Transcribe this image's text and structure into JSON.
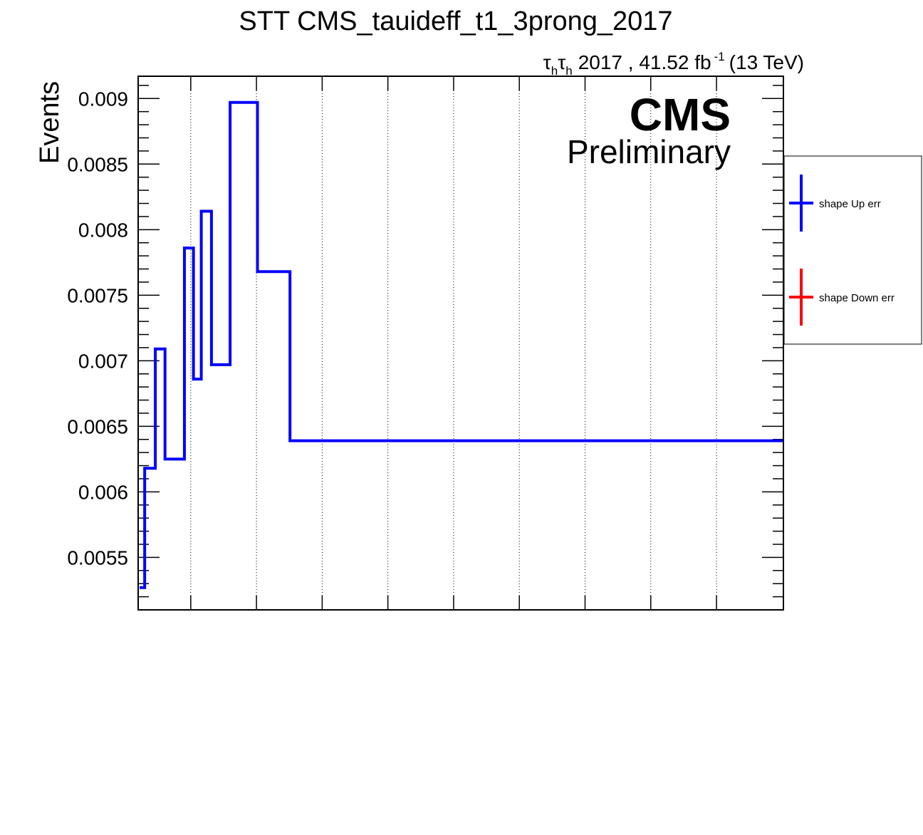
{
  "chart_data": {
    "type": "line",
    "title": "STT CMS_tauideff_t1_3prong_2017",
    "lumi_prefix": "2017 , 41.52 fb",
    "lumi_superscript": "-1",
    "lumi_suffix": "(13 TeV)",
    "tau_symbol": "τ",
    "tau_subscript": "h",
    "cms_label": "CMS",
    "preliminary_label": "Preliminary",
    "ylabel": "Events",
    "xlabel": "",
    "ylim": [
      0.0051,
      0.00917
    ],
    "xlim": [
      0,
      1
    ],
    "grid_x": true,
    "grid_y": false,
    "yticks": [
      {
        "value": 0.0055,
        "label": "0.0055"
      },
      {
        "value": 0.006,
        "label": "0.006"
      },
      {
        "value": 0.0065,
        "label": "0.0065"
      },
      {
        "value": 0.007,
        "label": "0.007"
      },
      {
        "value": 0.0075,
        "label": "0.0075"
      },
      {
        "value": 0.008,
        "label": "0.008"
      },
      {
        "value": 0.0085,
        "label": "0.0085"
      },
      {
        "value": 0.009,
        "label": "0.009"
      }
    ],
    "xgrid": [
      0.0815,
      0.1833,
      0.2852,
      0.387,
      0.4889,
      0.5907,
      0.6926,
      0.7944,
      0.8963
    ],
    "legend_position": "right",
    "series": [
      {
        "name": "shape Up err",
        "color": "#0000ff",
        "bin_edges": [
          0,
          0.0101,
          0.0266,
          0.0416,
          0.0717,
          0.0857,
          0.0978,
          0.1136,
          0.1425,
          0.1849,
          0.2353,
          1.0
        ],
        "values": [
          0.00527,
          0.00618,
          0.00709,
          0.00625,
          0.00786,
          0.00686,
          0.00814,
          0.00697,
          0.00897,
          0.00768,
          0.00639
        ]
      },
      {
        "name": "shape Down err",
        "color": "#ff0000",
        "bin_edges": [],
        "values": []
      }
    ]
  }
}
